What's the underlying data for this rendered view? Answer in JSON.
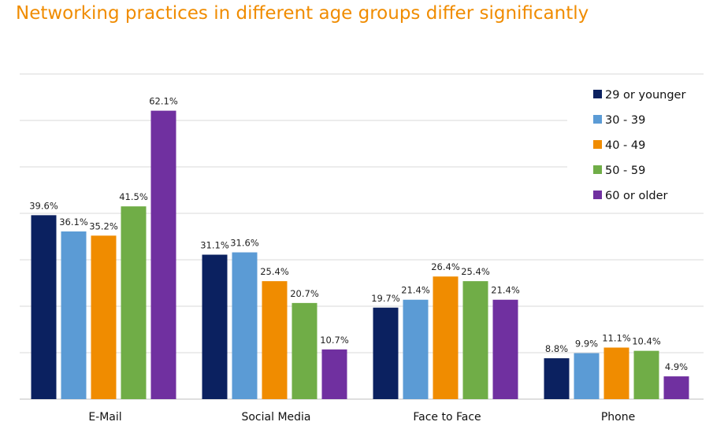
{
  "chart_data": {
    "type": "bar",
    "title": "Networking practices in different age groups differ significantly",
    "categories": [
      "E-Mail",
      "Social Media",
      "Face to Face",
      "Phone"
    ],
    "series": [
      {
        "name": "29 or younger",
        "color": "#0B2160",
        "values": [
          39.6,
          31.1,
          19.7,
          8.8
        ],
        "labels": [
          "39.6%",
          "31.1%",
          "19.7%",
          "8.8%"
        ]
      },
      {
        "name": "30 - 39",
        "color": "#5B9BD5",
        "values": [
          36.1,
          31.6,
          21.4,
          9.9
        ],
        "labels": [
          "36.1%",
          "31.6%",
          "21.4%",
          "9.9%"
        ]
      },
      {
        "name": "40 - 49",
        "color": "#F08C00",
        "values": [
          35.2,
          25.4,
          26.4,
          11.1
        ],
        "labels": [
          "35.2%",
          "25.4%",
          "26.4%",
          "11.1%"
        ]
      },
      {
        "name": "50 - 59",
        "color": "#70AD47",
        "values": [
          41.5,
          20.7,
          25.4,
          10.4
        ],
        "labels": [
          "41.5%",
          "20.7%",
          "25.4%",
          "10.4%"
        ]
      },
      {
        "name": "60 or older",
        "color": "#7030A0",
        "values": [
          62.1,
          10.7,
          21.4,
          4.9
        ],
        "labels": [
          "62.1%",
          "10.7%",
          "21.4%",
          "4.9%"
        ]
      }
    ],
    "ylim": [
      0,
      70
    ],
    "grid": true,
    "legend": "top-right"
  }
}
